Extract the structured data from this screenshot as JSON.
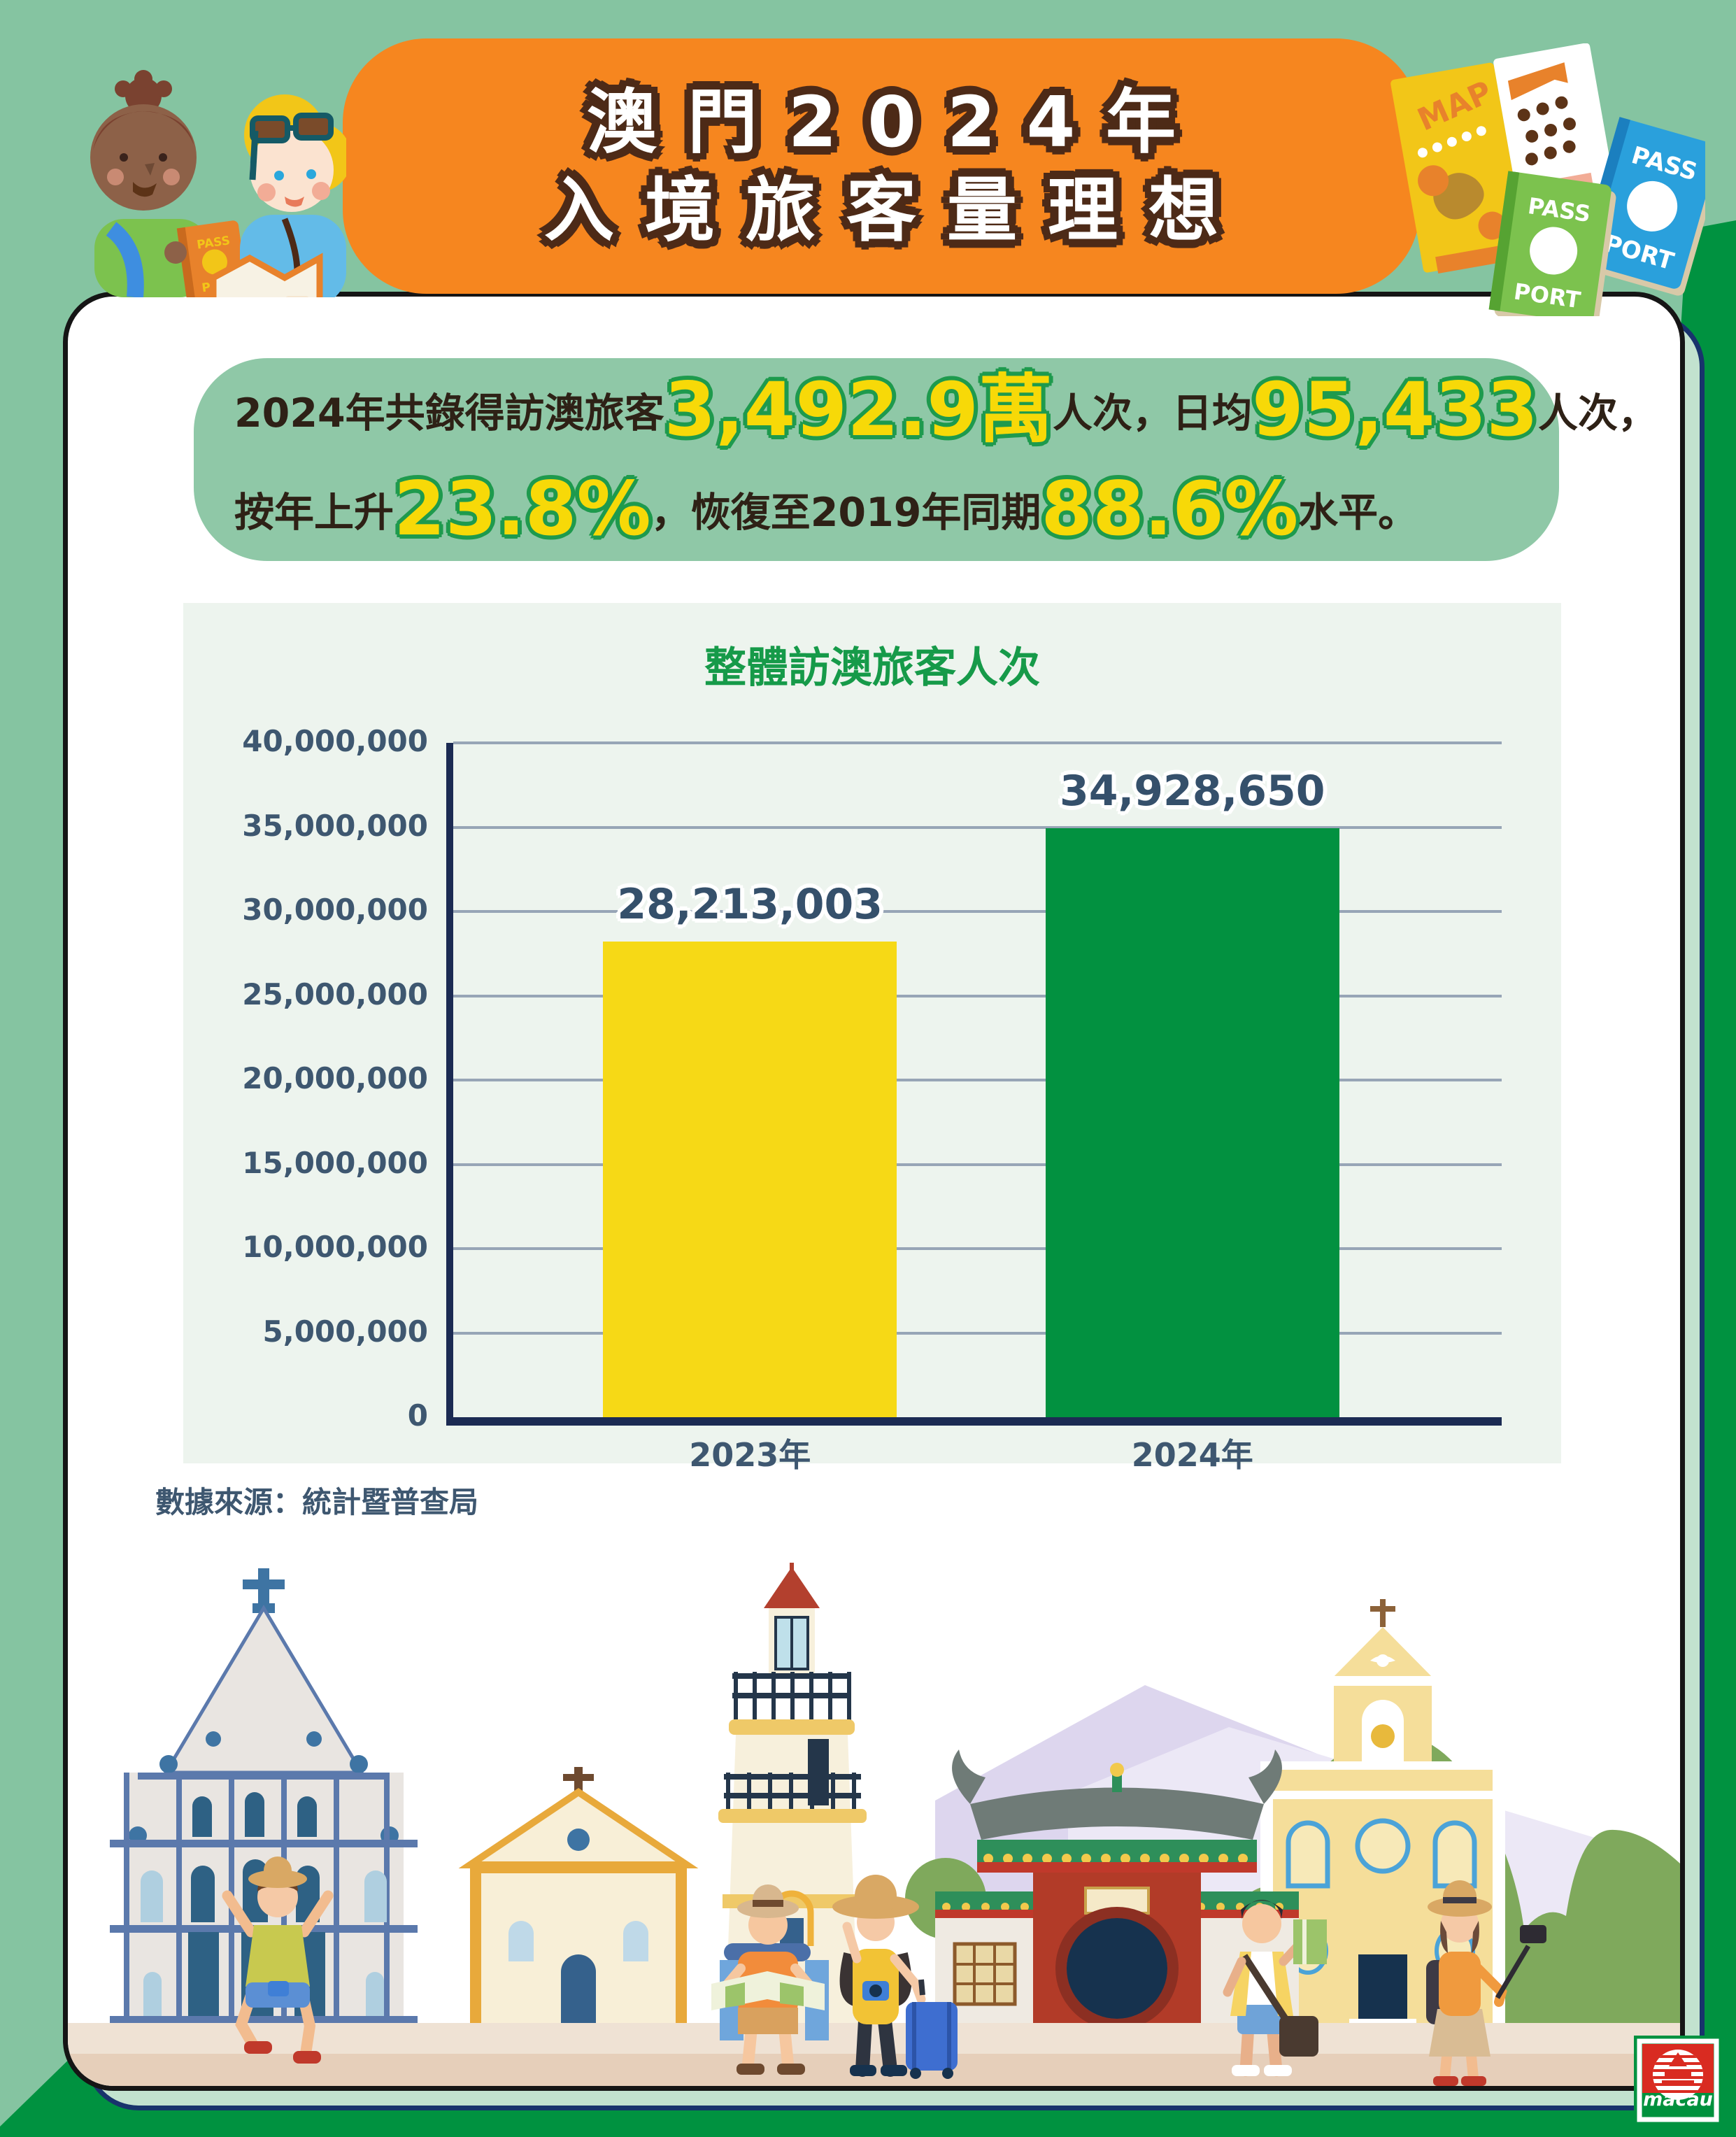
{
  "header": {
    "title_line1": "澳門2024年",
    "title_line2": "入境旅客量理想",
    "banner_color": "#F6861F",
    "title_outline_color": "#4D2A17"
  },
  "summary": {
    "box_color": "#8FC8A7",
    "line1": [
      {
        "text": "2024年共錄得訪澳旅客",
        "style": "dark"
      },
      {
        "text": "3,492.9萬",
        "style": "highlight"
      },
      {
        "text": "人次，日均",
        "style": "dark"
      },
      {
        "text": "95,433",
        "style": "highlight"
      },
      {
        "text": "人次，",
        "style": "dark"
      }
    ],
    "line2": [
      {
        "text": "按年上升",
        "style": "dark"
      },
      {
        "text": "23.8%",
        "style": "highlight"
      },
      {
        "text": "，恢復至2019年同期",
        "style": "dark"
      },
      {
        "text": "88.6%",
        "style": "highlight"
      },
      {
        "text": "水平。",
        "style": "dark"
      }
    ],
    "highlight_color": "#F7D908",
    "highlight_outline": "#1E9A4D",
    "text_color": "#2E2116"
  },
  "chart_data": {
    "type": "bar",
    "title": "整體訪澳旅客人次",
    "categories": [
      "2023年",
      "2024年"
    ],
    "values": [
      28213003,
      34928650
    ],
    "value_labels": [
      "28,213,003",
      "34,928,650"
    ],
    "bar_colors": [
      "#F6D916",
      "#029140"
    ],
    "bar_centers": [
      0.283,
      0.705
    ],
    "ylim": [
      0,
      40000000
    ],
    "ytick_step": 5000000,
    "ytick_labels": [
      "0",
      "5,000,000",
      "10,000,000",
      "15,000,000",
      "20,000,000",
      "25,000,000",
      "30,000,000",
      "35,000,000",
      "40,000,000"
    ],
    "grid": true,
    "legend": null,
    "xlabel": "",
    "ylabel": ""
  },
  "source": {
    "label": "數據來源：統計暨普查局"
  },
  "decor": {
    "passport_word_top": "PASS",
    "passport_word_bottom": "PORT",
    "map_word": "MAP",
    "logo_word": "macau"
  },
  "colors": {
    "background": "#85C4A1",
    "background_dark": "#009240",
    "card": "#FFFFFF",
    "card_shadow": "#C2E2CF",
    "chart_panel": "#EDF4EE",
    "axis": "#1C2B53",
    "gridline": "#97A5B6",
    "tick_label": "#3E5770",
    "chart_title": "#169A49"
  }
}
